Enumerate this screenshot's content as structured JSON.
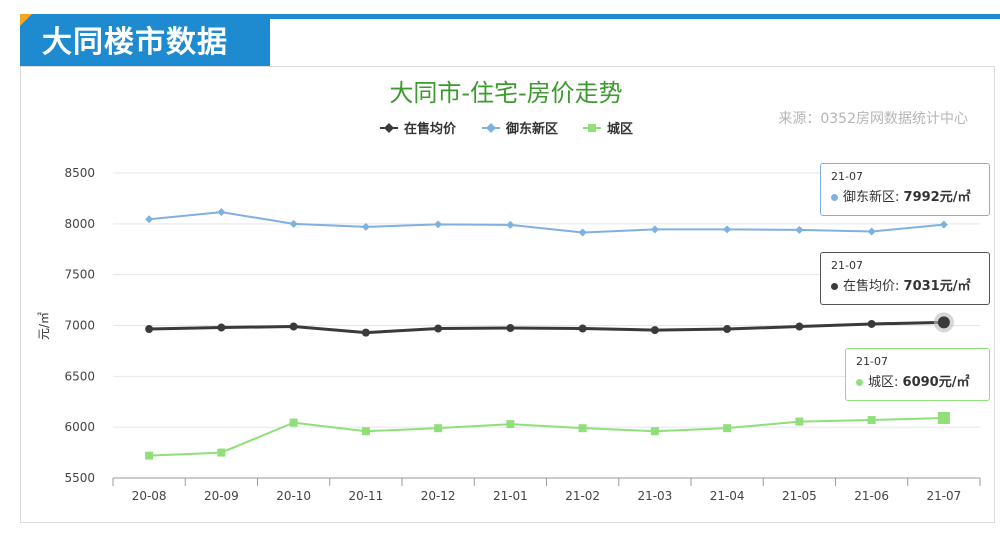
{
  "header": {
    "title": "大同楼市数据"
  },
  "chart_data": {
    "type": "line",
    "title": "大同市-住宅-房价走势",
    "source": "来源：0352房网数据统计中心",
    "ylabel": "元/㎡",
    "xlabel": "",
    "ylim": [
      5500,
      8500
    ],
    "yticks": [
      5500,
      6000,
      6500,
      7000,
      7500,
      8000,
      8500
    ],
    "grid": true,
    "legend_position": "top",
    "categories": [
      "20-08",
      "20-09",
      "20-10",
      "20-11",
      "20-12",
      "21-01",
      "21-02",
      "21-03",
      "21-04",
      "21-05",
      "21-06",
      "21-07"
    ],
    "series": [
      {
        "name": "在售均价",
        "color": "#3a3a3a",
        "marker": "diamond",
        "values": [
          6965,
          6980,
          6990,
          6930,
          6970,
          6975,
          6970,
          6955,
          6965,
          6990,
          7015,
          7031
        ]
      },
      {
        "name": "御东新区",
        "color": "#7eb1e0",
        "marker": "diamond",
        "values": [
          8045,
          8115,
          8000,
          7970,
          7995,
          7990,
          7915,
          7945,
          7945,
          7940,
          7925,
          7992
        ]
      },
      {
        "name": "城区",
        "color": "#8fe07a",
        "marker": "square",
        "values": [
          5720,
          5750,
          6045,
          5960,
          5990,
          6030,
          5990,
          5960,
          5990,
          6055,
          6070,
          6090
        ]
      }
    ]
  },
  "tooltips": [
    {
      "date": "21-07",
      "label": "御东新区:",
      "value": "7992元/㎡",
      "color": "#7eb1e0"
    },
    {
      "date": "21-07",
      "label": "在售均价:",
      "value": "7031元/㎡",
      "color": "#3a3a3a"
    },
    {
      "date": "21-07",
      "label": "城区:",
      "value": "6090元/㎡",
      "color": "#8fe07a"
    }
  ]
}
